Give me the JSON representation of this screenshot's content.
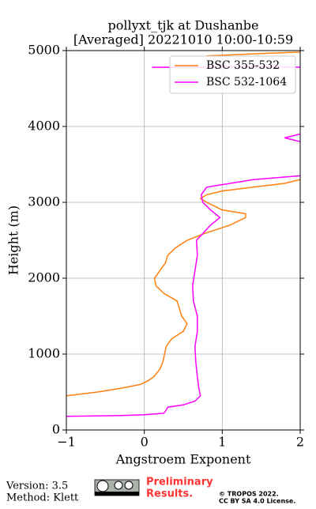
{
  "chart_data": {
    "type": "line",
    "title": [
      "pollyxt_tjk at Dushanbe",
      "[Averaged] 20221010 10:00-10:59"
    ],
    "xlabel": "Angstroem Exponent",
    "ylabel": "Height (m)",
    "xlim": [
      -1,
      2
    ],
    "ylim": [
      0,
      5000
    ],
    "xticks": [
      {
        "value": -1,
        "label": "−1"
      },
      0,
      1,
      2
    ],
    "yticks": [
      0,
      1000,
      2000,
      3000,
      4000,
      5000
    ],
    "grid": true,
    "legend": "upper right",
    "series": [
      {
        "name": "BSC 355-532",
        "color": "#ff7f0e",
        "y": [
          450,
          500,
          550,
          600,
          650,
          700,
          800,
          900,
          1000,
          1100,
          1200,
          1300,
          1400,
          1500,
          1600,
          1700,
          1800,
          1900,
          2000,
          2100,
          2200,
          2300,
          2400,
          2500,
          2600,
          2700,
          2800,
          2850,
          2900,
          3000,
          3050,
          3100,
          3150,
          3200,
          3250,
          3300,
          4000,
          4930,
          4960,
          4980
        ],
        "values": [
          -1.0,
          -0.6,
          -0.3,
          -0.05,
          0.05,
          0.12,
          0.2,
          0.24,
          0.26,
          0.28,
          0.35,
          0.5,
          0.55,
          0.48,
          0.45,
          0.42,
          0.25,
          0.15,
          0.13,
          0.2,
          0.27,
          0.3,
          0.4,
          0.55,
          0.8,
          1.1,
          1.3,
          1.3,
          1.0,
          0.8,
          0.72,
          0.8,
          1.0,
          1.4,
          1.8,
          2.0,
          null,
          0.8,
          1.5,
          2.0
        ]
      },
      {
        "name": "BSC 532-1064",
        "color": "#ff00ff",
        "y": [
          180,
          190,
          200,
          220,
          260,
          300,
          330,
          380,
          450,
          550,
          700,
          900,
          1100,
          1300,
          1500,
          1700,
          1900,
          2100,
          2300,
          2500,
          2700,
          2800,
          2900,
          3000,
          3100,
          3200,
          3300,
          3350,
          3600,
          3800,
          3850,
          3900,
          4300,
          4780,
          4781
        ],
        "values": [
          -1.0,
          -0.3,
          0.0,
          0.25,
          0.28,
          0.3,
          0.5,
          0.65,
          0.72,
          0.7,
          0.68,
          0.66,
          0.65,
          0.68,
          0.68,
          0.63,
          0.62,
          0.65,
          0.68,
          0.67,
          0.85,
          0.97,
          0.85,
          0.75,
          0.73,
          0.8,
          1.4,
          2.0,
          null,
          2.0,
          1.8,
          2.0,
          null,
          0.1,
          2.0
        ]
      }
    ],
    "footer": {
      "version": "Version: 3.5",
      "method": "Method: Klett",
      "preliminary": [
        "Preliminary",
        "Results."
      ],
      "copyright": [
        "© TROPOS 2022.",
        "CC BY SA 4.0 License."
      ]
    }
  }
}
